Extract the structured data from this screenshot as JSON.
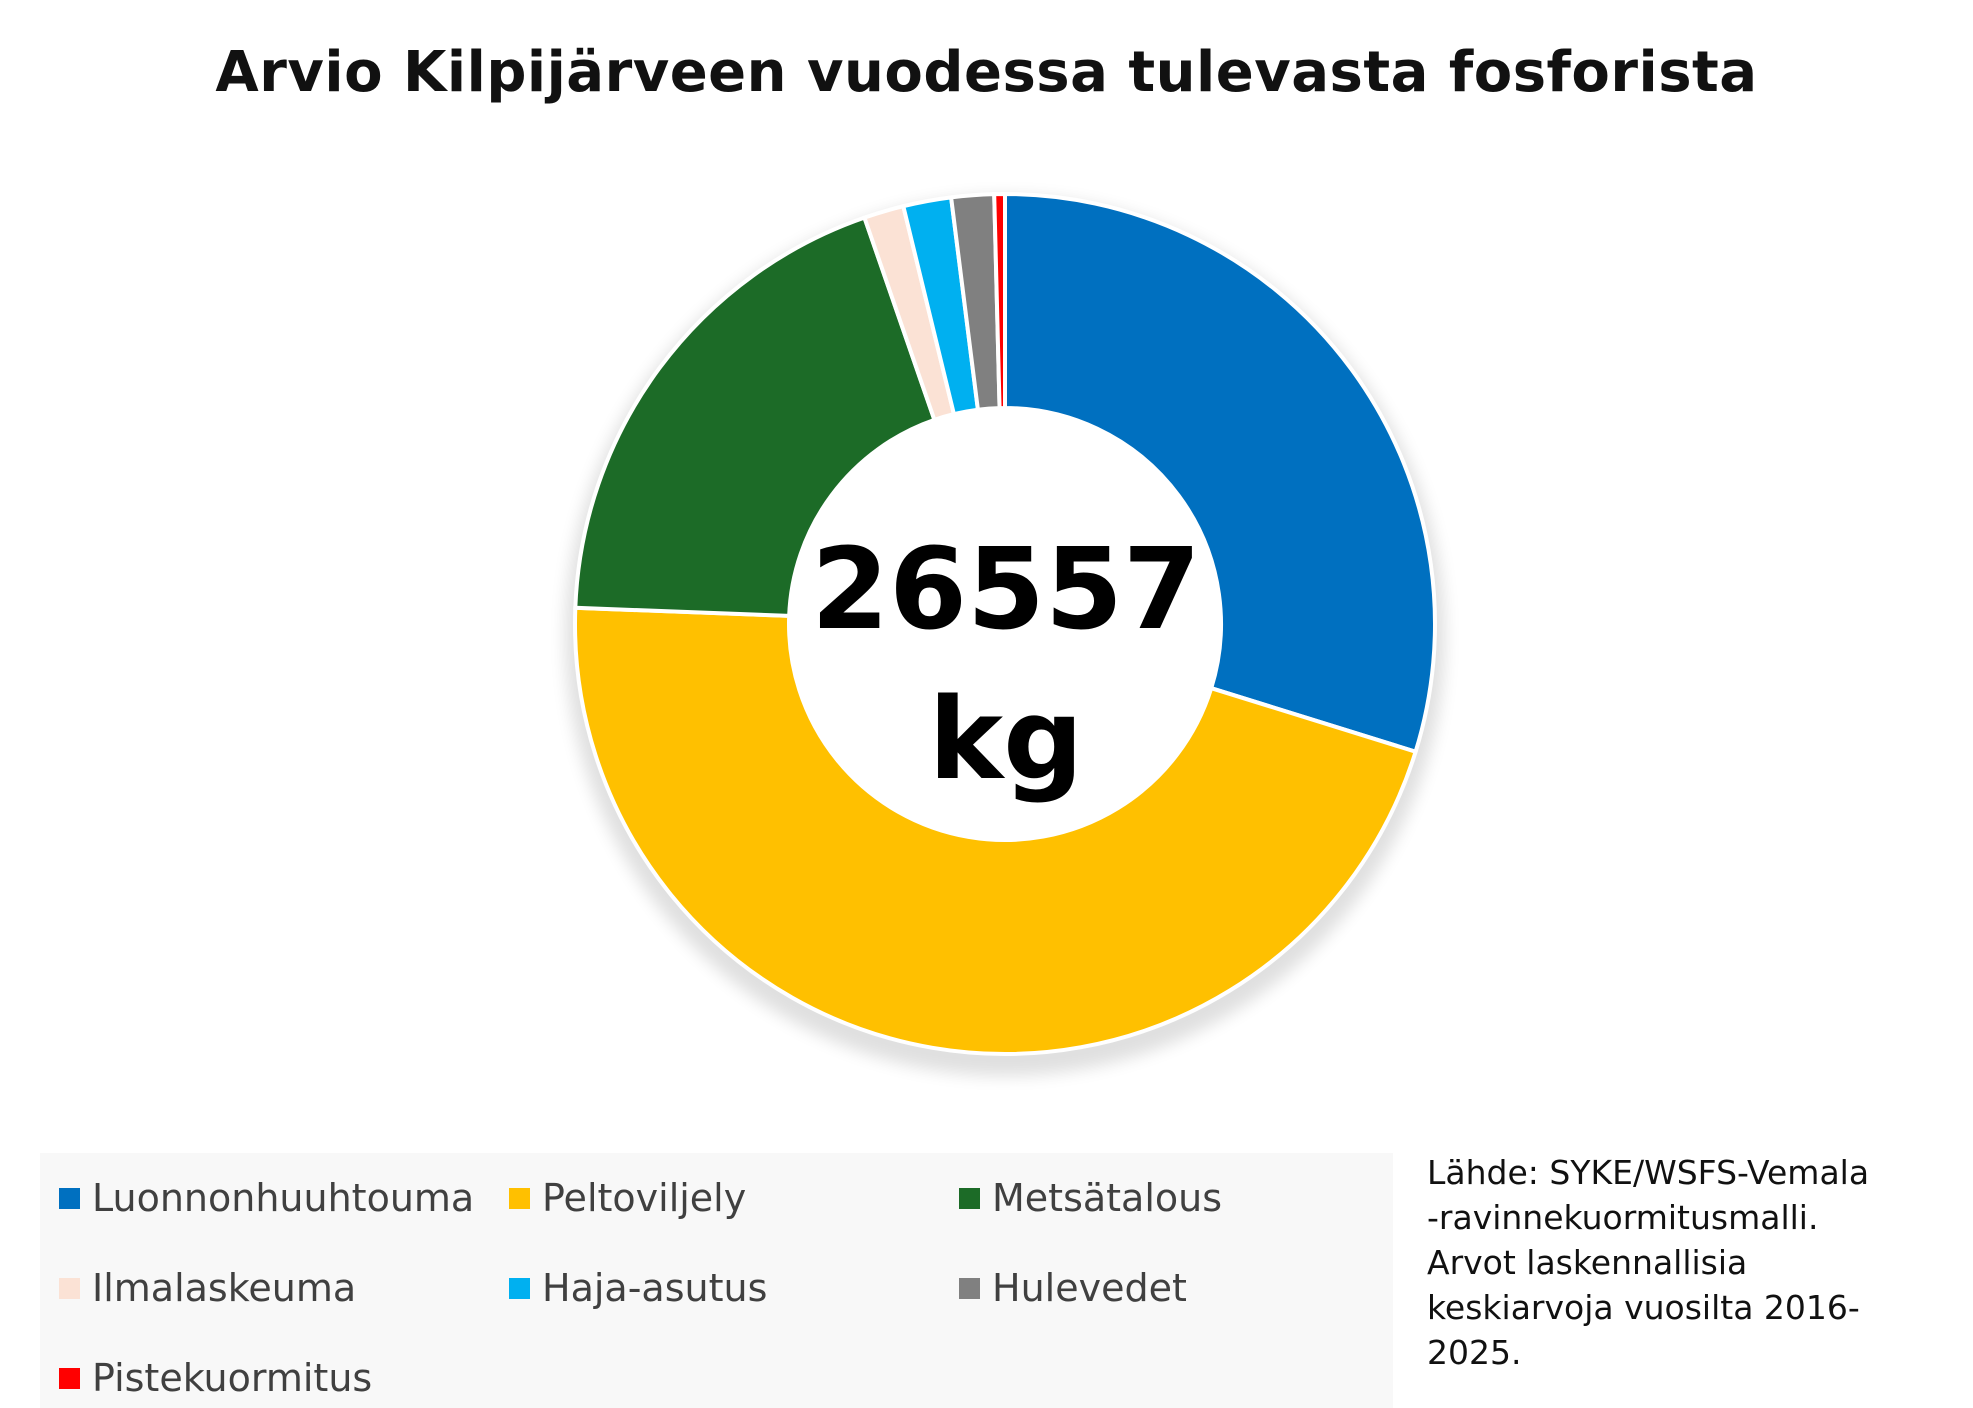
{
  "chart_data": {
    "type": "pie",
    "variant": "donut",
    "title": "Arvio Kilpijärveen vuodessa tulevasta fosforista",
    "center_label": {
      "value": "26557",
      "unit": "kg"
    },
    "categories": [
      "Luonnonhuuhtouma",
      "Peltoviljely",
      "Metsätalous",
      "Ilmalaskeuma",
      "Haja-asutus",
      "Hulevedet",
      "Pistekuormitus"
    ],
    "values": [
      29.8,
      45.8,
      19.1,
      1.5,
      1.8,
      1.6,
      0.4
    ],
    "colors": [
      "#0070c0",
      "#ffc000",
      "#1c6b27",
      "#fbe2d5",
      "#00b0f0",
      "#808080",
      "#ff0000"
    ],
    "legend_position": "bottom"
  },
  "source_note": {
    "lines": [
      "Lähde: SYKE/WSFS-Vemala",
      "-ravinnekuormitusmalli.",
      "Arvot laskennallisia",
      "keskiarvoja vuosilta 2016-",
      "2025."
    ]
  }
}
